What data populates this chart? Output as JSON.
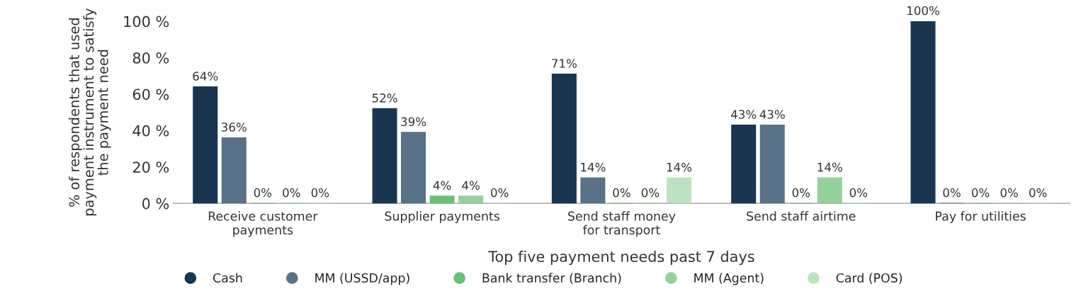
{
  "chart_data": {
    "type": "bar",
    "xlabel": "Top five payment needs past 7 days",
    "ylabel": "% of respondents that used\npayment instrument to satisfy\nthe payment need",
    "categories": [
      "Receive customer\npayments",
      "Supplier payments",
      "Send staff money\nfor transport",
      "Send staff airtime",
      "Pay for utilities"
    ],
    "series": [
      {
        "name": "Cash",
        "color": "#1a3550",
        "values": [
          64,
          52,
          71,
          43,
          100
        ],
        "value_labels": [
          "64%",
          "52%",
          "71%",
          "43%",
          "100%"
        ]
      },
      {
        "name": "MM (USSD/app)",
        "color": "#5b7187",
        "values": [
          36,
          39,
          14,
          43,
          0
        ],
        "value_labels": [
          "36%",
          "39%",
          "14%",
          "43%",
          "0%"
        ]
      },
      {
        "name": "Bank transfer (Branch)",
        "color": "#6cbf77",
        "values": [
          0,
          4,
          0,
          0,
          0
        ],
        "value_labels": [
          "0%",
          "4%",
          "0%",
          "0%",
          "0%"
        ]
      },
      {
        "name": "MM (Agent)",
        "color": "#96d09d",
        "values": [
          0,
          4,
          0,
          14,
          0
        ],
        "value_labels": [
          "0%",
          "4%",
          "0%",
          "14%",
          "0%"
        ]
      },
      {
        "name": "Card (POS)",
        "color": "#bde2c1",
        "values": [
          0,
          0,
          14,
          0,
          0
        ],
        "value_labels": [
          "0%",
          "0%",
          "14%",
          "0%",
          "0%"
        ]
      }
    ],
    "ylim": [
      0,
      100
    ],
    "yticks": [
      {
        "value": 0,
        "label": "0 %"
      },
      {
        "value": 20,
        "label": "20 %"
      },
      {
        "value": 40,
        "label": "40 %"
      },
      {
        "value": 60,
        "label": "60 %"
      },
      {
        "value": 80,
        "label": "80 %"
      },
      {
        "value": 100,
        "label": "100 %"
      }
    ],
    "grid": false,
    "legend": "bottom"
  }
}
